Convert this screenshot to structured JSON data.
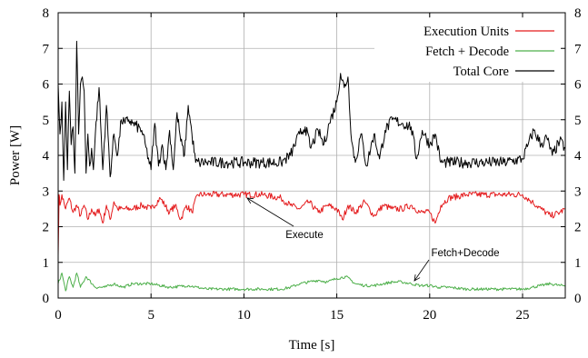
{
  "chart_data": {
    "type": "line",
    "title": "",
    "xlabel": "Time [s]",
    "ylabel": "Power [W]",
    "xlim": [
      0,
      27.3
    ],
    "ylim": [
      0,
      8
    ],
    "grid": true,
    "legend_position": "top-right",
    "x_ticks": [
      "0",
      "5",
      "10",
      "15",
      "20",
      "25"
    ],
    "x_tick_values": [
      0,
      5,
      10,
      15,
      20,
      25
    ],
    "y_ticks": [
      "0",
      "1",
      "2",
      "3",
      "4",
      "5",
      "6",
      "7",
      "8"
    ],
    "y_tick_values": [
      0,
      1,
      2,
      3,
      4,
      5,
      6,
      7,
      8
    ],
    "series": [
      {
        "name": "Execution Units",
        "color": "#e41a1c",
        "x": [
          0,
          0.05,
          0.1,
          0.2,
          0.4,
          0.6,
          0.8,
          1.0,
          1.2,
          1.4,
          1.6,
          1.8,
          2.0,
          2.2,
          2.4,
          2.6,
          2.8,
          3.0,
          3.2,
          3.5,
          4.0,
          4.5,
          5.0,
          5.5,
          6.0,
          6.3,
          6.6,
          6.9,
          7.2,
          7.5,
          8.0,
          9.0,
          10.0,
          11.0,
          12.0,
          12.5,
          13.0,
          13.5,
          14.0,
          14.5,
          15.0,
          15.3,
          15.6,
          16.0,
          16.5,
          17.0,
          17.5,
          18.0,
          18.5,
          19.0,
          19.5,
          20.0,
          20.3,
          20.6,
          21.0,
          22.0,
          23.0,
          24.0,
          25.0,
          25.5,
          26.0,
          26.5,
          27.0,
          27.3
        ],
        "values": [
          1.2,
          2.9,
          2.6,
          2.9,
          2.5,
          2.8,
          2.4,
          2.6,
          2.3,
          2.6,
          2.2,
          2.5,
          2.3,
          2.5,
          2.1,
          2.6,
          2.2,
          2.7,
          2.5,
          2.5,
          2.5,
          2.6,
          2.5,
          2.8,
          2.4,
          2.6,
          2.2,
          2.6,
          2.4,
          2.9,
          2.9,
          2.9,
          2.9,
          2.9,
          2.8,
          2.6,
          2.5,
          2.7,
          2.4,
          2.6,
          2.5,
          2.2,
          2.6,
          2.4,
          2.7,
          2.3,
          2.6,
          2.5,
          2.5,
          2.6,
          2.4,
          2.4,
          2.1,
          2.6,
          2.8,
          2.9,
          2.9,
          2.9,
          2.9,
          2.7,
          2.5,
          2.3,
          2.4,
          2.5
        ]
      },
      {
        "name": "Fetch + Decode",
        "color": "#4daf4a",
        "x": [
          0,
          0.2,
          0.4,
          0.6,
          0.8,
          1.0,
          1.2,
          1.5,
          2.0,
          2.5,
          3.0,
          3.5,
          4.0,
          5.0,
          6.0,
          7.0,
          7.5,
          8.0,
          9.0,
          10.0,
          11.0,
          12.0,
          12.5,
          13.0,
          13.5,
          14.0,
          14.5,
          15.0,
          15.5,
          16.0,
          16.5,
          17.0,
          17.5,
          18.0,
          18.5,
          19.0,
          19.5,
          20.0,
          20.5,
          21.0,
          22.0,
          23.0,
          24.0,
          25.0,
          25.5,
          26.0,
          26.5,
          27.0,
          27.3
        ],
        "values": [
          0.4,
          0.7,
          0.2,
          0.6,
          0.3,
          0.7,
          0.3,
          0.6,
          0.3,
          0.3,
          0.4,
          0.3,
          0.4,
          0.4,
          0.3,
          0.35,
          0.3,
          0.25,
          0.25,
          0.25,
          0.25,
          0.25,
          0.3,
          0.4,
          0.45,
          0.5,
          0.45,
          0.55,
          0.6,
          0.4,
          0.35,
          0.35,
          0.4,
          0.45,
          0.45,
          0.4,
          0.35,
          0.35,
          0.3,
          0.3,
          0.25,
          0.25,
          0.25,
          0.25,
          0.3,
          0.35,
          0.4,
          0.35,
          0.35
        ]
      },
      {
        "name": "Total Core",
        "color": "#000000",
        "x": [
          0,
          0.1,
          0.2,
          0.3,
          0.4,
          0.5,
          0.6,
          0.7,
          0.8,
          0.9,
          1.0,
          1.1,
          1.2,
          1.3,
          1.4,
          1.5,
          1.6,
          1.7,
          1.8,
          1.9,
          2.0,
          2.2,
          2.4,
          2.6,
          2.8,
          3.0,
          3.2,
          3.4,
          3.6,
          3.8,
          4.0,
          4.5,
          5.0,
          5.2,
          5.4,
          5.6,
          5.8,
          6.0,
          6.2,
          6.4,
          6.6,
          6.8,
          7.0,
          7.2,
          7.4,
          7.6,
          8.0,
          9.0,
          10.0,
          11.0,
          12.0,
          12.5,
          13.0,
          13.3,
          13.6,
          14.0,
          14.3,
          14.6,
          15.0,
          15.2,
          15.4,
          15.6,
          15.8,
          16.0,
          16.3,
          16.6,
          17.0,
          17.3,
          17.6,
          18.0,
          18.5,
          19.0,
          19.3,
          19.6,
          20.0,
          20.3,
          20.6,
          21.0,
          22.0,
          23.0,
          24.0,
          25.0,
          25.3,
          25.6,
          26.0,
          26.3,
          26.6,
          27.0,
          27.3
        ],
        "values": [
          6.0,
          4.6,
          5.5,
          3.3,
          5.5,
          3.6,
          5.8,
          4.3,
          4.8,
          3.5,
          7.2,
          4.6,
          6.0,
          6.2,
          5.8,
          3.5,
          4.6,
          3.7,
          4.2,
          3.6,
          4.6,
          5.9,
          3.6,
          5.4,
          3.4,
          4.6,
          4.0,
          5.0,
          4.9,
          5.0,
          4.9,
          4.7,
          3.6,
          4.9,
          3.7,
          4.3,
          3.6,
          4.7,
          3.6,
          5.2,
          4.4,
          4.0,
          5.4,
          4.6,
          3.8,
          3.8,
          3.8,
          3.8,
          3.8,
          3.8,
          3.8,
          4.0,
          4.6,
          4.8,
          4.2,
          4.7,
          4.3,
          4.9,
          5.5,
          6.3,
          5.9,
          6.2,
          4.4,
          3.8,
          4.6,
          3.7,
          4.6,
          3.9,
          4.7,
          5.0,
          4.9,
          4.8,
          3.9,
          4.7,
          4.3,
          4.6,
          3.8,
          3.8,
          3.8,
          3.8,
          3.8,
          3.9,
          4.3,
          4.7,
          4.3,
          4.5,
          4.0,
          4.4,
          4.2
        ]
      }
    ],
    "annotations": [
      {
        "text": "Execute",
        "x": 10.4,
        "y": 2.85
      },
      {
        "text": "Fetch+Decode",
        "x": 19.2,
        "y": 0.45
      }
    ]
  }
}
